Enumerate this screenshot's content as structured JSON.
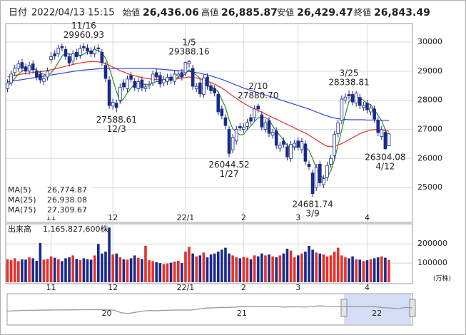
{
  "header": {
    "date_label": "日付",
    "datetime": "2022/04/13 15:15",
    "fields": [
      {
        "name": "始値",
        "label": "26,436.06",
        "color": "#000000"
      },
      {
        "name": "高値",
        "label": "26,885.87",
        "color": "#e8141b"
      },
      {
        "name": "安値",
        "label": "26,429.47",
        "color": "#1a8a1a"
      },
      {
        "name": "終値",
        "label": "26,843.49",
        "color": "#000000"
      }
    ]
  },
  "chart_data": {
    "type": "candlestick",
    "categories": [
      null,
      null,
      null,
      null,
      null,
      null,
      null,
      null,
      null,
      null,
      null,
      null,
      "11",
      null,
      null,
      null,
      null,
      null,
      null,
      null,
      null,
      null,
      null,
      null,
      null,
      null,
      null,
      null,
      null,
      "12",
      null,
      null,
      null,
      null,
      null,
      null,
      null,
      null,
      null,
      null,
      null,
      null,
      null,
      null,
      null,
      null,
      null,
      null,
      null,
      "22/1",
      null,
      null,
      null,
      null,
      null,
      null,
      null,
      null,
      null,
      null,
      null,
      null,
      null,
      null,
      null,
      "2",
      null,
      null,
      null,
      null,
      null,
      null,
      null,
      null,
      null,
      null,
      null,
      null,
      null,
      null,
      "3",
      null,
      null,
      null,
      null,
      null,
      null,
      null,
      null,
      null,
      null,
      null,
      null,
      null,
      null,
      null,
      null,
      null,
      null,
      "4",
      null,
      null,
      null,
      null,
      null,
      null
    ],
    "candles": {
      "open": [
        28400,
        28600,
        28950,
        29100,
        29300,
        29150,
        29000,
        29250,
        29000,
        28900,
        28650,
        28800,
        29400,
        29600,
        29600,
        29850,
        29750,
        29500,
        29350,
        29650,
        29550,
        29850,
        29800,
        29700,
        29600,
        29800,
        29650,
        29200,
        28700,
        27800,
        27900,
        28000,
        28600,
        28400,
        28850,
        28650,
        28400,
        28700,
        28400,
        28500,
        28600,
        28950,
        28850,
        28600,
        28650,
        28800,
        28650,
        28850,
        28950,
        28950,
        29250,
        29100,
        28400,
        28600,
        28200,
        28800,
        28500,
        28400,
        28200,
        27700,
        27400,
        27000,
        26300,
        26600,
        27100,
        27000,
        27100,
        27400,
        27400,
        27800,
        27500,
        27000,
        27300,
        26800,
        26950,
        26350,
        26600,
        26400,
        26000,
        26400,
        26600,
        26300,
        26500,
        25800,
        25500,
        25000,
        25800,
        25100,
        25350,
        25800,
        26100,
        26850,
        27300,
        28000,
        28200,
        28200,
        27900,
        28100,
        27750,
        27900,
        27600,
        27700,
        27300,
        26750,
        26900,
        26436.06
      ],
      "high": [
        28720,
        29020,
        29220,
        29370,
        29420,
        29270,
        29320,
        29370,
        29120,
        29020,
        28870,
        29120,
        29650,
        29720,
        29910,
        29940,
        29870,
        29620,
        29720,
        29770,
        29900,
        29960.93,
        29920,
        29820,
        29870,
        29920,
        29770,
        29320,
        28820,
        28050,
        28020,
        28570,
        28720,
        28850,
        28970,
        28770,
        28760,
        28820,
        28580,
        28670,
        29020,
        29070,
        28970,
        28840,
        28910,
        28920,
        29020,
        29020,
        29070,
        29330,
        29388.16,
        29220,
        28600,
        28720,
        28880,
        28920,
        28620,
        28520,
        28320,
        27820,
        27520,
        27120,
        26840,
        27120,
        27220,
        27200,
        27360,
        27520,
        27820,
        27880.7,
        27620,
        27350,
        27420,
        27020,
        27070,
        26570,
        26720,
        26520,
        26600,
        26640,
        26720,
        26700,
        26620,
        25920,
        25620,
        25810,
        25920,
        25420,
        25880,
        26120,
        26950,
        27340,
        28160,
        28230,
        28338.81,
        28320,
        28320,
        28220,
        27940,
        28020,
        27860,
        27820,
        27420,
        27110,
        27020,
        26885.87
      ],
      "low": [
        28280,
        28480,
        28830,
        28980,
        28980,
        28880,
        28880,
        28930,
        28680,
        28580,
        28530,
        28680,
        29280,
        29400,
        29480,
        29680,
        29390,
        29160,
        29230,
        29380,
        29430,
        29680,
        29570,
        29480,
        29480,
        29650,
        29180,
        28630,
        27700,
        27680,
        27588.61,
        27880,
        28340,
        28280,
        28600,
        28320,
        28280,
        28310,
        28280,
        28380,
        28480,
        28680,
        28440,
        28480,
        28530,
        28560,
        28530,
        28730,
        28680,
        28830,
        29130,
        28360,
        28280,
        28100,
        28080,
        28370,
        28210,
        28130,
        27480,
        27350,
        27010,
        26044.52,
        26180,
        26480,
        26930,
        26880,
        26980,
        27160,
        27280,
        27580,
        26960,
        26880,
        26740,
        26680,
        26330,
        26230,
        26360,
        25930,
        25880,
        26280,
        26270,
        26180,
        25780,
        25600,
        24681.74,
        24880,
        25040,
        24980,
        25230,
        25680,
        25980,
        26730,
        27180,
        27880,
        28030,
        27820,
        27780,
        27700,
        27630,
        27550,
        27480,
        27230,
        26770,
        26630,
        26304.08,
        26429.47
      ],
      "close": [
        28600,
        28900,
        29100,
        29250,
        29100,
        29000,
        29200,
        29050,
        28800,
        28700,
        28750,
        29000,
        29500,
        29520,
        29790,
        29800,
        29510,
        29280,
        29600,
        29500,
        29780,
        29800,
        29690,
        29600,
        29750,
        29770,
        29300,
        28750,
        27820,
        27930,
        27750,
        28450,
        28460,
        28730,
        28720,
        28440,
        28640,
        28430,
        28460,
        28550,
        28900,
        28800,
        28560,
        28720,
        28790,
        28680,
        28900,
        28900,
        28800,
        29300,
        29330,
        28480,
        28480,
        28220,
        28760,
        28490,
        28330,
        28250,
        27600,
        27470,
        27130,
        26170,
        26720,
        27000,
        27050,
        27080,
        27240,
        27280,
        27700,
        27700,
        27080,
        27230,
        26860,
        26900,
        26450,
        26450,
        26480,
        26050,
        26480,
        26520,
        26390,
        26580,
        25900,
        25720,
        24790,
        25690,
        25160,
        25300,
        25760,
        26000,
        26830,
        27220,
        28040,
        28110,
        28150,
        27940,
        28250,
        27820,
        27820,
        27670,
        27740,
        27350,
        26890,
        26990,
        26330,
        26843.49
      ]
    },
    "up_color": "#ffffff",
    "down_color": "#1a2a8c",
    "outline_color": "#1a2a8c",
    "ylim": [
      23850,
      30590
    ],
    "yticks": [
      25000,
      26000,
      27000,
      28000,
      29000,
      30000
    ],
    "grid": true,
    "series": [
      {
        "name": "MA(5)",
        "color": "#2e8b2e",
        "value_label": "26,774.87",
        "values": [
          28500,
          28600,
          28750,
          28900,
          29000,
          29070,
          29120,
          29120,
          29030,
          28950,
          28900,
          28850,
          28950,
          29090,
          29310,
          29520,
          29620,
          29580,
          29580,
          29540,
          29530,
          29590,
          29660,
          29680,
          29720,
          29720,
          29620,
          29450,
          29120,
          28710,
          28300,
          27940,
          28060,
          28260,
          28420,
          28560,
          28600,
          28560,
          28540,
          28530,
          28600,
          28640,
          28640,
          28700,
          28760,
          28710,
          28730,
          28800,
          28810,
          28920,
          29050,
          28960,
          28860,
          28760,
          28650,
          28490,
          28460,
          28410,
          28290,
          28030,
          27760,
          27330,
          27020,
          26900,
          26810,
          26820,
          27000,
          27120,
          27270,
          27400,
          27420,
          27400,
          27330,
          27120,
          26930,
          26790,
          26630,
          26450,
          26380,
          26400,
          26380,
          26400,
          26380,
          26280,
          25990,
          25670,
          25460,
          25300,
          25350,
          25580,
          25950,
          26460,
          26970,
          27500,
          27960,
          28100,
          28120,
          28070,
          28000,
          27890,
          27850,
          27680,
          27480,
          27300,
          26980,
          26774.87
        ]
      },
      {
        "name": "MA(25)",
        "color": "#e8302a",
        "value_label": "26,938.08",
        "values": [
          28800,
          28820,
          28850,
          28880,
          28900,
          28920,
          28940,
          28960,
          28970,
          28980,
          29000,
          29020,
          29050,
          29080,
          29110,
          29140,
          29170,
          29200,
          29230,
          29260,
          29280,
          29300,
          29320,
          29330,
          29330,
          29320,
          29300,
          29260,
          29200,
          29140,
          29080,
          29020,
          28970,
          28920,
          28880,
          28840,
          28810,
          28780,
          28760,
          28740,
          28720,
          28710,
          28700,
          28700,
          28700,
          28710,
          28720,
          28740,
          28760,
          28780,
          28800,
          28790,
          28770,
          28740,
          28700,
          28660,
          28610,
          28560,
          28490,
          28420,
          28340,
          28240,
          28150,
          28060,
          27980,
          27900,
          27830,
          27760,
          27700,
          27650,
          27590,
          27530,
          27470,
          27410,
          27350,
          27290,
          27230,
          27170,
          27110,
          27050,
          26990,
          26930,
          26870,
          26800,
          26720,
          26640,
          26560,
          26480,
          26420,
          26400,
          26420,
          26460,
          26510,
          26570,
          26640,
          26710,
          26780,
          26850,
          26900,
          26940,
          26970,
          26990,
          26990,
          26980,
          26960,
          26938.08
        ]
      },
      {
        "name": "MA(75)",
        "color": "#3040e0",
        "value_label": "27,309.67",
        "values": [
          28630,
          28650,
          28670,
          28690,
          28710,
          28730,
          28750,
          28770,
          28790,
          28810,
          28830,
          28850,
          28870,
          28890,
          28910,
          28930,
          28950,
          28970,
          28990,
          29010,
          29020,
          29040,
          29050,
          29060,
          29070,
          29080,
          29090,
          29090,
          29090,
          29090,
          29090,
          29090,
          29090,
          29090,
          29090,
          29090,
          29090,
          29090,
          29090,
          29090,
          29090,
          29080,
          29070,
          29060,
          29050,
          29040,
          29030,
          29020,
          29010,
          29000,
          28990,
          28970,
          28950,
          28930,
          28900,
          28870,
          28840,
          28800,
          28760,
          28720,
          28670,
          28620,
          28570,
          28520,
          28470,
          28420,
          28380,
          28340,
          28300,
          28260,
          28220,
          28180,
          28140,
          28100,
          28060,
          28020,
          27980,
          27940,
          27900,
          27860,
          27820,
          27780,
          27740,
          27700,
          27650,
          27600,
          27550,
          27500,
          27460,
          27420,
          27390,
          27370,
          27350,
          27340,
          27330,
          27330,
          27330,
          27330,
          27330,
          27320,
          27320,
          27320,
          27320,
          27310,
          27310,
          27309.67
        ]
      }
    ],
    "annotations": [
      {
        "date": "11/16",
        "value": 29960.93,
        "label": "29960.93"
      },
      {
        "date": "12/3",
        "value": 27588.61,
        "label": "27588.61"
      },
      {
        "date": "1/5",
        "value": 29388.16,
        "label": "29388.16"
      },
      {
        "date": "1/27",
        "value": 26044.52,
        "label": "26044.52"
      },
      {
        "date": "2/10",
        "value": 27880.7,
        "label": "27880.70"
      },
      {
        "date": "3/9",
        "value": 24681.74,
        "label": "24681.74"
      },
      {
        "date": "3/25",
        "value": 28338.81,
        "label": "28338.81"
      },
      {
        "date": "4/12",
        "value": 26304.08,
        "label": "26304.08"
      }
    ],
    "volume": {
      "label": "出来高",
      "value_label": "1,165,827,600株",
      "unit": "(万株)",
      "up_color": "#e8302a",
      "down_color": "#1a2a8c",
      "ylim": [
        0,
        290000
      ],
      "yticks": [
        100000,
        200000
      ],
      "values": [
        120000,
        115000,
        125000,
        110000,
        120000,
        118000,
        130000,
        125000,
        112000,
        205000,
        118000,
        122000,
        135000,
        128000,
        120000,
        110000,
        125000,
        130000,
        140000,
        122000,
        115000,
        125000,
        120000,
        118000,
        140000,
        200000,
        150000,
        160000,
        285000,
        145000,
        150000,
        130000,
        120000,
        118000,
        125000,
        140000,
        128000,
        122000,
        190000,
        115000,
        110000,
        105000,
        100000,
        95000,
        98000,
        102000,
        108000,
        112000,
        100000,
        160000,
        185000,
        150000,
        135000,
        140000,
        155000,
        130000,
        145000,
        150000,
        160000,
        170000,
        180000,
        150000,
        140000,
        130000,
        125000,
        132000,
        128000,
        120000,
        140000,
        135000,
        150000,
        140000,
        145000,
        135000,
        130000,
        140000,
        150000,
        175000,
        165000,
        130000,
        140000,
        150000,
        160000,
        190000,
        170000,
        155000,
        150000,
        145000,
        135000,
        140000,
        160000,
        180000,
        140000,
        130000,
        125000,
        135000,
        120000,
        118000,
        110000,
        115000,
        120000,
        125000,
        130000,
        135000,
        128000,
        116582.76
      ]
    },
    "navigator": {
      "color": "#9a9a9a",
      "ylim": [
        0,
        50000
      ],
      "categories": [
        null,
        null,
        null,
        null,
        null,
        null,
        null,
        null,
        null,
        null,
        null,
        null,
        null,
        null,
        "20",
        null,
        null,
        null,
        null,
        null,
        null,
        null,
        null,
        null,
        null,
        null,
        null,
        null,
        null,
        null,
        null,
        null,
        null,
        "21",
        null,
        null,
        null,
        null,
        null,
        null,
        null,
        null,
        null,
        null,
        null,
        null,
        null,
        null,
        null,
        null,
        null,
        null,
        "22",
        null,
        null,
        null,
        null,
        null
      ],
      "values": [
        21500,
        22000,
        22500,
        22800,
        23000,
        23200,
        23300,
        23400,
        23500,
        23600,
        23700,
        23800,
        23900,
        24000,
        23500,
        23200,
        19000,
        17500,
        19500,
        21500,
        22500,
        22000,
        22800,
        23000,
        23300,
        23200,
        23500,
        25000,
        26500,
        26800,
        27500,
        27400,
        28000,
        29000,
        29500,
        29000,
        28800,
        29200,
        28900,
        28000,
        28700,
        28500,
        28200,
        29200,
        30000,
        29500,
        28800,
        29200,
        29400,
        28700,
        28500,
        29300,
        28300,
        27000,
        26500,
        25300,
        27500,
        26800
      ]
    }
  }
}
